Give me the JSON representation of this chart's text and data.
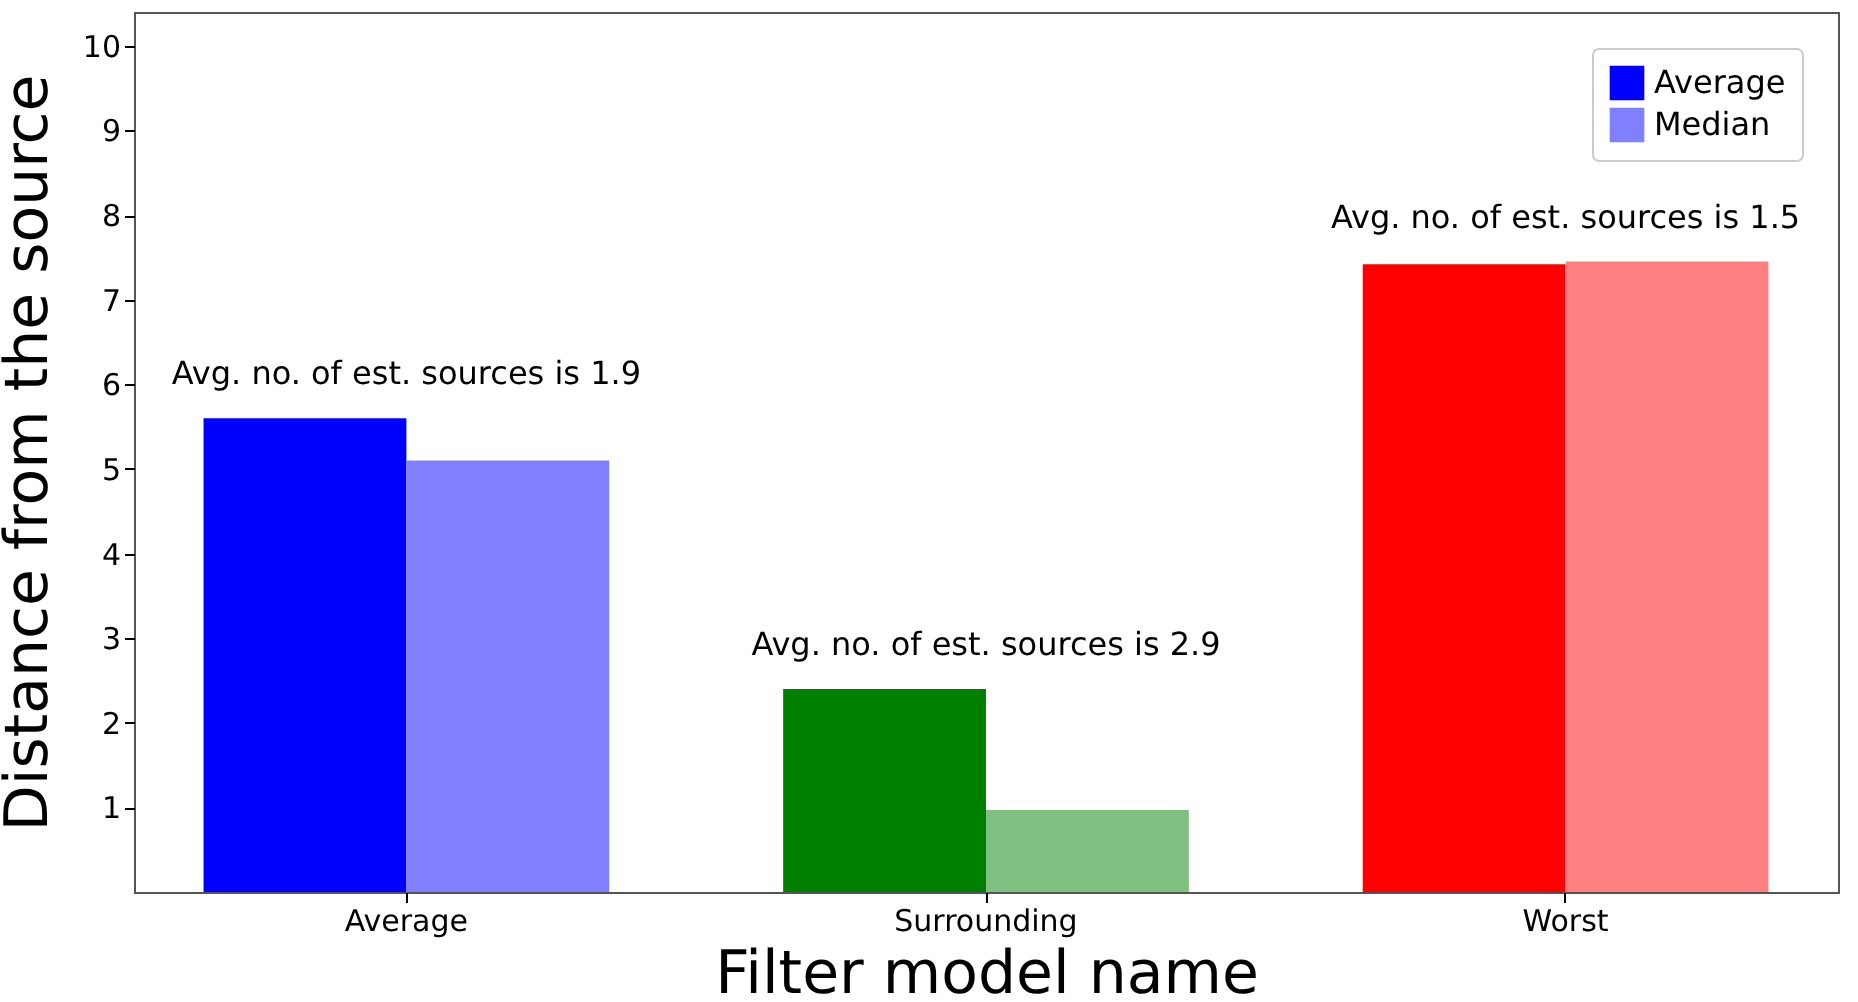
{
  "chart_data": {
    "type": "bar",
    "xlabel": "Filter model name",
    "ylabel": "Distance from the source",
    "categories": [
      "Average",
      "Surrounding",
      "Worst"
    ],
    "series": [
      {
        "name": "Average",
        "color": "#0000ff",
        "colors": [
          "#0000ff",
          "#008000",
          "#ff0000"
        ],
        "values": [
          5.6,
          2.4,
          7.42
        ]
      },
      {
        "name": "Median",
        "color": "#8080ff",
        "colors": [
          "#8080ff",
          "#80c080",
          "#ff8080"
        ],
        "values": [
          5.1,
          0.97,
          7.45
        ]
      }
    ],
    "ylim": [
      0,
      10.4
    ],
    "yticks": [
      1,
      2,
      3,
      4,
      5,
      6,
      7,
      8,
      9,
      10
    ],
    "grid": false,
    "legend": "top right",
    "annotations": [
      "Avg. no. of est. sources is 1.9",
      "Avg. no. of est. sources is 2.9",
      "Avg. no. of est. sources is 1.5"
    ]
  }
}
